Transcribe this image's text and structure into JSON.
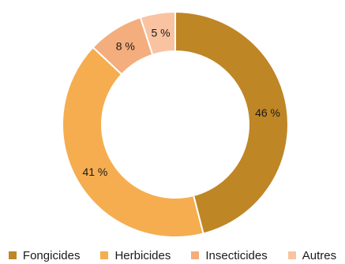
{
  "chart_data": {
    "type": "pie",
    "title": "",
    "categories": [
      "Fongicides",
      "Herbicides",
      "Insecticides",
      "Autres"
    ],
    "values": [
      46,
      41,
      8,
      5
    ],
    "labels": [
      "46 %",
      "41 %",
      "8 %",
      "5 %"
    ],
    "colors": [
      "#bf8626",
      "#f5ad4f",
      "#f4ad7c",
      "#f9c3a2"
    ],
    "donut": true,
    "legend_position": "bottom"
  }
}
